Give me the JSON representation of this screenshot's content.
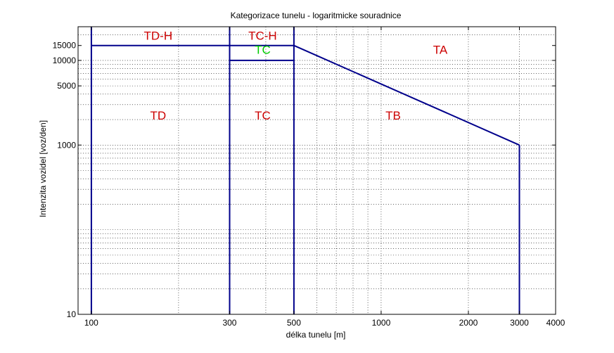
{
  "chart_data": {
    "type": "line",
    "title": "Kategorizace tunelu - logaritmicke souradnice",
    "xlabel": "délka tunelu [m]",
    "ylabel": "Intenzita vozidel [voz/den]",
    "xscale": "log",
    "yscale": "log",
    "xlim": [
      90,
      4000
    ],
    "ylim": [
      10,
      25000
    ],
    "grid": true,
    "x_ticks": [
      {
        "value": 100,
        "label": "100"
      },
      {
        "value": 300,
        "label": "300"
      },
      {
        "value": 500,
        "label": "500"
      },
      {
        "value": 1000,
        "label": "1000"
      },
      {
        "value": 2000,
        "label": "2000"
      },
      {
        "value": 3000,
        "label": "3000"
      },
      {
        "value": 4000,
        "label": "4000"
      }
    ],
    "y_ticks": [
      {
        "value": 10,
        "label": "10"
      },
      {
        "value": 1000,
        "label": "1000"
      },
      {
        "value": 5000,
        "label": "5000"
      },
      {
        "value": 10000,
        "label": "10000"
      },
      {
        "value": 15000,
        "label": "15000"
      }
    ],
    "series": [
      {
        "color": "#00008b",
        "x": [
          100,
          100
        ],
        "y": [
          10,
          25000
        ]
      },
      {
        "color": "#00008b",
        "x": [
          300,
          300
        ],
        "y": [
          10,
          25000
        ]
      },
      {
        "color": "#00008b",
        "x": [
          500,
          500
        ],
        "y": [
          10,
          25000
        ]
      },
      {
        "color": "#00008b",
        "x": [
          100,
          500
        ],
        "y": [
          15000,
          15000
        ]
      },
      {
        "color": "#00008b",
        "x": [
          300,
          500
        ],
        "y": [
          10000,
          10000
        ]
      },
      {
        "color": "#00008b",
        "x": [
          500,
          3000
        ],
        "y": [
          15000,
          1000
        ]
      },
      {
        "color": "#00008b",
        "x": [
          3000,
          3000
        ],
        "y": [
          1000,
          10
        ]
      }
    ],
    "annotations": [
      {
        "text": "TD-H",
        "x": 170,
        "y": 17500,
        "color": "#cc0000"
      },
      {
        "text": "TC-H",
        "x": 390,
        "y": 17500,
        "color": "#cc0000"
      },
      {
        "text": "TC",
        "x": 390,
        "y": 12000,
        "color": "#00cc00"
      },
      {
        "text": "TA",
        "x": 1600,
        "y": 12000,
        "color": "#cc0000"
      },
      {
        "text": "TD",
        "x": 170,
        "y": 2000,
        "color": "#cc0000"
      },
      {
        "text": "TC",
        "x": 390,
        "y": 2000,
        "color": "#cc0000"
      },
      {
        "text": "TB",
        "x": 1100,
        "y": 2000,
        "color": "#cc0000"
      }
    ]
  }
}
